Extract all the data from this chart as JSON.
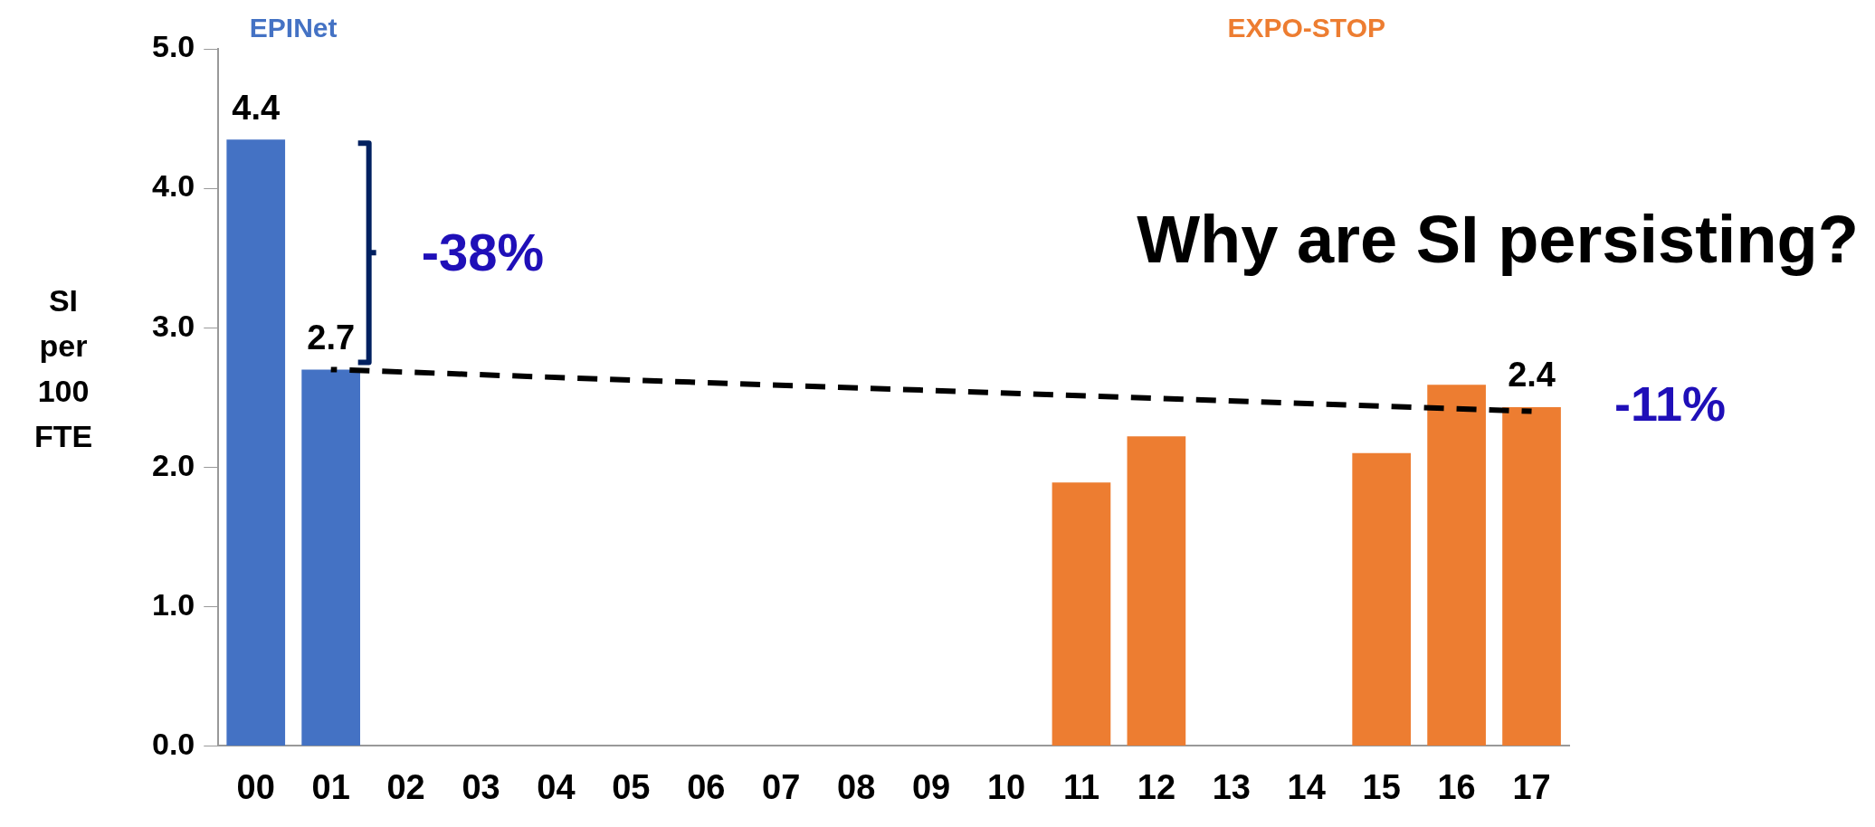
{
  "chart_data": {
    "type": "bar",
    "ylabel": "SI per 100 FTE",
    "categories": [
      "00",
      "01",
      "02",
      "03",
      "04",
      "05",
      "06",
      "07",
      "08",
      "09",
      "10",
      "11",
      "12",
      "13",
      "14",
      "15",
      "16",
      "17"
    ],
    "series": [
      {
        "name": "EPINet",
        "color": "#4472c4",
        "values": [
          4.35,
          2.7,
          null,
          null,
          null,
          null,
          null,
          null,
          null,
          null,
          null,
          null,
          null,
          null,
          null,
          null,
          null,
          null
        ],
        "value_labels": [
          "4.4",
          "2.7",
          null,
          null,
          null,
          null,
          null,
          null,
          null,
          null,
          null,
          null,
          null,
          null,
          null,
          null,
          null,
          null
        ]
      },
      {
        "name": "EXPO-STOP",
        "color": "#ed7d31",
        "values": [
          null,
          null,
          null,
          null,
          null,
          null,
          null,
          null,
          null,
          null,
          null,
          1.89,
          2.22,
          null,
          null,
          2.1,
          2.59,
          2.43
        ],
        "value_labels": [
          null,
          null,
          null,
          null,
          null,
          null,
          null,
          null,
          null,
          null,
          null,
          null,
          null,
          null,
          null,
          null,
          null,
          "2.4"
        ]
      },
      {
        "type": "line",
        "color": "#000000",
        "line_style": "dashed",
        "marker": "none",
        "x": [
          "01",
          "17"
        ],
        "values": [
          2.7,
          2.4
        ]
      }
    ],
    "ylim": [
      0,
      5
    ],
    "yticks": [
      {
        "value": 0,
        "label": "0.0"
      },
      {
        "value": 1,
        "label": "1.0"
      },
      {
        "value": 2,
        "label": "2.0"
      },
      {
        "value": 3,
        "label": "3.0"
      },
      {
        "value": 4,
        "label": "4.0"
      },
      {
        "value": 5,
        "label": "5.0"
      }
    ],
    "grid": false,
    "legend": false,
    "annotations": [
      "-38%",
      "-11%",
      "Why are SI persisting?"
    ]
  }
}
